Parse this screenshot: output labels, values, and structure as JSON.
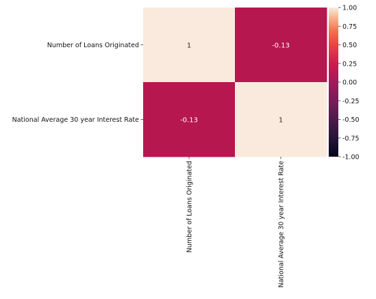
{
  "chart_data": {
    "type": "heatmap",
    "row_labels": [
      "Number of Loans Originated",
      "National Average 30 year Interest Rate"
    ],
    "col_labels": [
      "Number of Loans Originated",
      "National Average 30 year Interest Rate"
    ],
    "values": [
      [
        1,
        -0.13
      ],
      [
        -0.13,
        1
      ]
    ],
    "cell_labels": [
      [
        "1",
        "-0.13"
      ],
      [
        "-0.13",
        "1"
      ]
    ],
    "colorbar": {
      "vmin": -1.0,
      "vmax": 1.0,
      "ticks": [
        "1.00",
        "0.75",
        "0.50",
        "0.25",
        "0.00",
        "-0.25",
        "-0.50",
        "-0.75",
        "-1.00"
      ],
      "colormap": "rocket"
    },
    "colors": {
      "high": "#faeadd",
      "low_corr": "#b5174e"
    }
  }
}
